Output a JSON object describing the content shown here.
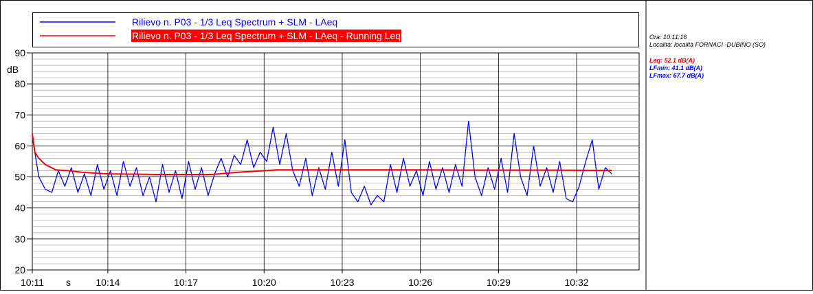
{
  "chart_data": {
    "type": "line",
    "info": {
      "time": "Ora: 10:11:16",
      "location": "Località: località FORNACI -DUBINO (SO)",
      "leq": "Leq: 52.1 dB(A)",
      "lfmin": "LFmin: 41.1 dB(A)",
      "lfmax": "LFmax: 67.7 dB(A)"
    },
    "y_label": "dB",
    "x_label": "s",
    "xlim": [
      611.1,
      634.4
    ],
    "ylim": [
      20,
      90
    ],
    "xticks": [
      {
        "value": 611.1,
        "label": "10:11"
      },
      {
        "value": 614,
        "label": "10:14"
      },
      {
        "value": 617,
        "label": "10:17"
      },
      {
        "value": 620,
        "label": "10:20"
      },
      {
        "value": 623,
        "label": "10:23"
      },
      {
        "value": 626,
        "label": "10:26"
      },
      {
        "value": 629,
        "label": "10:29"
      },
      {
        "value": 632,
        "label": "10:32"
      }
    ],
    "yticks": [
      20,
      30,
      40,
      50,
      60,
      70,
      80,
      90
    ],
    "yminorticks": [
      22,
      24,
      26,
      28,
      32,
      34,
      36,
      38,
      42,
      44,
      46,
      48,
      52,
      54,
      56,
      58,
      62,
      64,
      66,
      68,
      72,
      74,
      76,
      78,
      82,
      84,
      86,
      88
    ],
    "grid": true,
    "series": [
      {
        "name": "Rilievo n. P03 - 1/3 Leq Spectrum + SLM - LAeq",
        "color": "#0000ff",
        "x": [
          611.1,
          611.35,
          611.6,
          611.85,
          612.1,
          612.35,
          612.6,
          612.85,
          613.1,
          613.35,
          613.6,
          613.85,
          614.1,
          614.35,
          614.6,
          614.85,
          615.1,
          615.35,
          615.6,
          615.85,
          616.1,
          616.35,
          616.6,
          616.85,
          617.1,
          617.35,
          617.6,
          617.85,
          618.1,
          618.35,
          618.6,
          618.85,
          619.1,
          619.35,
          619.6,
          619.85,
          620.1,
          620.35,
          620.6,
          620.85,
          621.1,
          621.35,
          621.6,
          621.85,
          622.1,
          622.35,
          622.6,
          622.85,
          623.1,
          623.35,
          623.6,
          623.85,
          624.1,
          624.35,
          624.6,
          624.85,
          625.1,
          625.35,
          625.6,
          625.85,
          626.1,
          626.35,
          626.6,
          626.85,
          627.1,
          627.35,
          627.6,
          627.85,
          628.1,
          628.35,
          628.6,
          628.85,
          629.1,
          629.35,
          629.6,
          629.85,
          630.1,
          630.35,
          630.6,
          630.85,
          631.1,
          631.35,
          631.6,
          631.85,
          632.1,
          632.35,
          632.6,
          632.85,
          633.1,
          633.35
        ],
        "values": [
          63,
          50,
          46,
          45,
          52,
          47,
          53,
          45,
          51,
          44,
          54,
          46,
          52,
          44,
          55,
          47,
          53,
          44,
          50,
          42,
          54,
          45,
          52,
          43,
          55,
          46,
          53,
          44,
          51,
          56,
          50,
          57,
          54,
          62,
          53,
          58,
          55,
          66,
          54,
          64,
          52,
          47,
          56,
          44,
          53,
          46,
          58,
          47,
          62,
          45,
          42,
          47,
          41,
          44,
          42,
          54,
          45,
          56,
          47,
          52,
          44,
          55,
          46,
          53,
          45,
          54,
          47,
          68,
          50,
          44,
          53,
          46,
          56,
          45,
          64,
          50,
          44,
          60,
          47,
          53,
          45,
          55,
          43,
          42,
          47,
          55,
          62,
          46,
          53,
          51
        ]
      },
      {
        "name": "Rilievo n. P03 - 1/3 Leq Spectrum + SLM - LAeq - Running Leq",
        "color": "#ff0000",
        "x": [
          611.1,
          611.2,
          611.35,
          611.6,
          612,
          612.5,
          613,
          614,
          616,
          618,
          619,
          620,
          620.5,
          621,
          622,
          625,
          628,
          631,
          633.35
        ],
        "values": [
          64,
          58,
          56,
          54,
          52.3,
          52,
          51.5,
          51,
          50.8,
          50.8,
          51.5,
          52,
          52.3,
          52.3,
          52.3,
          52.3,
          52.2,
          52.2,
          52.1
        ]
      }
    ]
  }
}
